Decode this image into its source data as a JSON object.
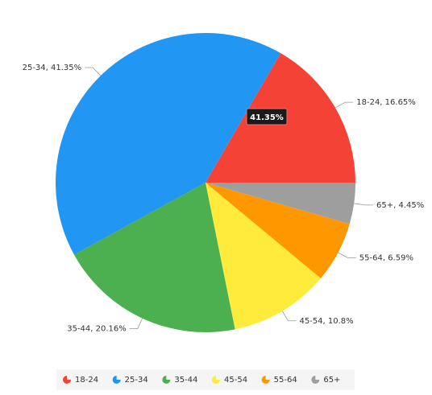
{
  "chart_data": {
    "type": "pie",
    "categories": [
      "18-24",
      "25-34",
      "35-44",
      "45-54",
      "55-64",
      "65+"
    ],
    "values": [
      16.65,
      41.35,
      20.16,
      10.8,
      6.59,
      4.45
    ],
    "value_labels": [
      "18-24, 16.65%",
      "25-34, 41.35%",
      "35-44, 20.16%",
      "45-54, 10.8%",
      "55-64, 6.59%",
      "65+, 4.45%"
    ],
    "colors": [
      "#f44336",
      "#2196f3",
      "#4caf50",
      "#ffeb3b",
      "#ff9800",
      "#9e9e9e"
    ],
    "tooltip": "41.35%",
    "legend": "bottom"
  }
}
